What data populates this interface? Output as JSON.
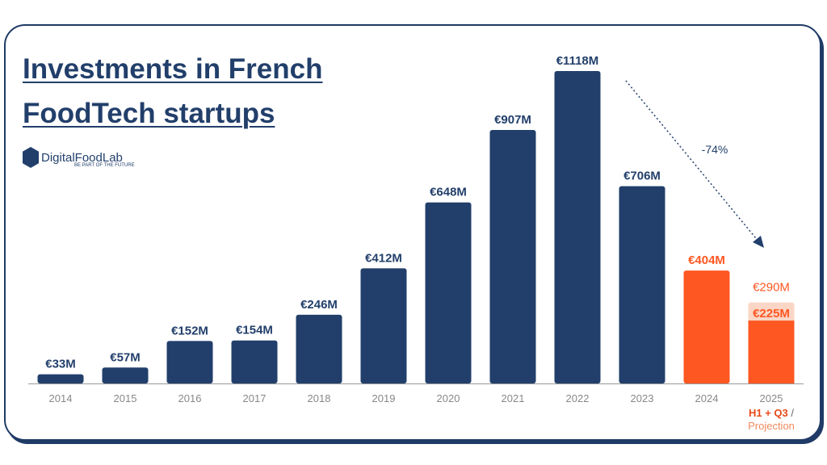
{
  "chart_data": {
    "type": "bar",
    "title": "Investments in French FoodTech startups",
    "categories": [
      "2014",
      "2015",
      "2016",
      "2017",
      "2018",
      "2019",
      "2020",
      "2021",
      "2022",
      "2023",
      "2024",
      "2025"
    ],
    "values": [
      33,
      57,
      152,
      154,
      246,
      412,
      648,
      907,
      1118,
      706,
      404,
      225
    ],
    "labels": [
      "€33M",
      "€57M",
      "€152M",
      "€154M",
      "€246M",
      "€412M",
      "€648M",
      "€907M",
      "€1118M",
      "€706M",
      "€404M",
      "€225M"
    ],
    "projection": {
      "category": "2025",
      "value": 290,
      "label": "€290M"
    },
    "category_sublabels": {
      "2025": {
        "part1": "H1 + Q3",
        "sep": " /",
        "part2": "Projection"
      }
    },
    "annotation": {
      "text": "-74%",
      "from": "2022",
      "to": "2025"
    },
    "ylim": [
      0,
      1118
    ],
    "grid": false,
    "colors": {
      "default": "#223f6b",
      "highlight": "#ff5722",
      "projection": "#fbd6c6"
    },
    "highlight_categories": [
      "2024",
      "2025"
    ]
  },
  "logo": {
    "name": "DigitalFoodLab",
    "tagline": "BE PART OF THE FUTURE"
  }
}
